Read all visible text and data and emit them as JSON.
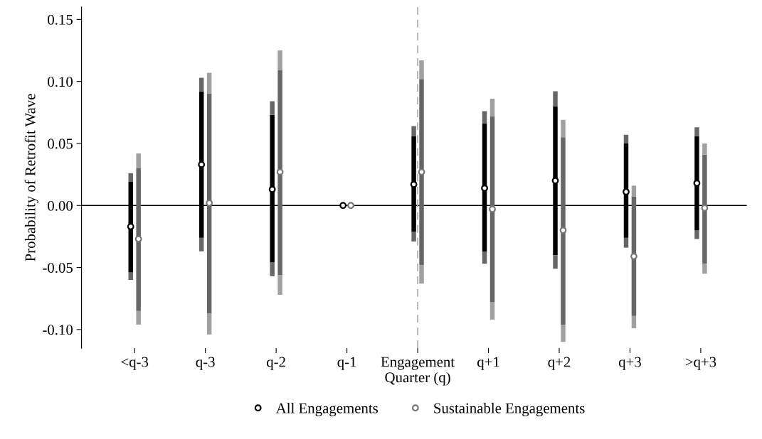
{
  "chart_data": {
    "type": "bar",
    "ylabel": "Probability of Retrofit Wave",
    "categories": [
      "<q-3",
      "q-3",
      "q-2",
      "q-1",
      "Engagement\nQuarter (q)",
      "q+1",
      "q+2",
      "q+3",
      ">q+3"
    ],
    "series": [
      {
        "color": "#666666",
        "base": [
          -0.06,
          -0.037,
          -0.057,
          null,
          -0.029,
          -0.047,
          -0.051,
          -0.034,
          -0.027
        ],
        "values": [
          0.006,
          0.011,
          0.011,
          null,
          0.008,
          0.01,
          0.011,
          0.008,
          0.007
        ]
      },
      {
        "color": "#000000",
        "base": [
          -0.054,
          -0.026,
          -0.046,
          null,
          -0.021,
          -0.037,
          -0.04,
          -0.026,
          -0.02
        ],
        "values": [
          0.073,
          0.118,
          0.119,
          null,
          0.077,
          0.103,
          0.12,
          0.076,
          0.076
        ]
      },
      {
        "color": "#666666",
        "base": [
          0.019,
          0.092,
          0.073,
          null,
          0.056,
          0.066,
          0.08,
          0.05,
          0.056
        ],
        "values": [
          0.007,
          0.011,
          0.011,
          null,
          0.008,
          0.01,
          0.012,
          0.007,
          0.007
        ]
      },
      {
        "color": "#a0a0a0",
        "base": [
          -0.096,
          -0.104,
          -0.072,
          null,
          -0.063,
          -0.092,
          -0.11,
          -0.099,
          -0.055
        ],
        "values": [
          0.011,
          0.017,
          0.016,
          null,
          0.015,
          0.014,
          0.014,
          0.01,
          0.008
        ]
      },
      {
        "color": "#666666",
        "base": [
          -0.085,
          -0.087,
          -0.056,
          null,
          -0.048,
          -0.078,
          -0.096,
          -0.089,
          -0.047
        ],
        "values": [
          0.115,
          0.177,
          0.165,
          null,
          0.15,
          0.15,
          0.151,
          0.096,
          0.088
        ]
      },
      {
        "color": "#a0a0a0",
        "base": [
          0.03,
          0.09,
          0.109,
          null,
          0.102,
          0.072,
          0.055,
          0.007,
          0.041
        ],
        "values": [
          0.012,
          0.017,
          0.016,
          null,
          0.015,
          0.014,
          0.014,
          0.009,
          0.009
        ]
      },
      {
        "type": "scatter",
        "name": "All Engagements",
        "color": "#000000",
        "values": [
          -0.017,
          0.033,
          0.013,
          0.0,
          0.017,
          0.014,
          0.02,
          0.011,
          0.018
        ]
      },
      {
        "type": "scatter",
        "name": "Sustainable Engagements",
        "color": "#777777",
        "values": [
          -0.027,
          0.002,
          0.027,
          0.0,
          0.027,
          -0.003,
          -0.02,
          -0.041,
          -0.002
        ]
      }
    ],
    "marker": "circle",
    "ylim": [
      -0.115,
      0.16
    ],
    "yticks": [
      {
        "value": -0.1,
        "label": "-0.10"
      },
      {
        "value": -0.05,
        "label": "-0.05"
      },
      {
        "value": 0,
        "label": "0.00"
      },
      {
        "value": 0.05,
        "label": "0.05"
      },
      {
        "value": 0.1,
        "label": "0.10"
      },
      {
        "value": 0.15,
        "label": "0.15"
      }
    ],
    "ref_lines": [
      {
        "axis": "y",
        "value": 0,
        "color": "#000000",
        "line_style": "solid"
      },
      {
        "axis": "x",
        "value": "Engagement\nQuarter (q)",
        "color": "#b0b0b0",
        "line_style": "dashed"
      }
    ],
    "grid": false,
    "legend": "bottom"
  }
}
